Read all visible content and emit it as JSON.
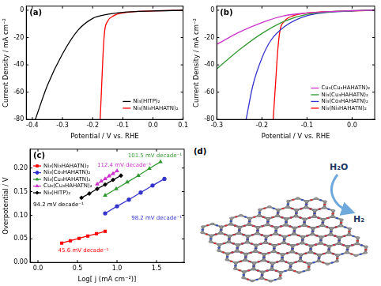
{
  "chart_data": [
    {
      "type": "line",
      "title": "(a)",
      "x_label": "Potential / V vs. RHE",
      "y_label": "Current Density / mA cm⁻²",
      "xlim": [
        -0.42,
        0.1
      ],
      "xticks": [
        -0.4,
        -0.3,
        -0.2,
        -0.1,
        {
          "value": 0,
          "label": "0.0"
        },
        0.1
      ],
      "ylim": [
        -80,
        3
      ],
      "yticks": [
        -80,
        -60,
        -40,
        -20,
        0
      ],
      "grid": false,
      "legend": "lower right",
      "series": [
        {
          "name": "Ni₃(HITP)₂",
          "color": "#000000",
          "x": [
            -0.39,
            -0.35,
            -0.3,
            -0.25,
            -0.2,
            -0.15,
            -0.1,
            0,
            0.1
          ],
          "values": [
            -80,
            -55,
            -32,
            -15,
            -6,
            -3,
            -1.5,
            -0.5,
            0
          ]
        },
        {
          "name": "Ni₃(Ni₃HAHATN)₂",
          "color": "#ff0000",
          "x": [
            -0.175,
            -0.17,
            -0.165,
            -0.16,
            -0.15,
            -0.13,
            -0.1,
            0,
            0.1
          ],
          "values": [
            -80,
            -55,
            -30,
            -15,
            -8,
            -4,
            -2,
            -0.5,
            0
          ]
        }
      ]
    },
    {
      "type": "line",
      "title": "(b)",
      "x_label": "Potential / V vs. RHE",
      "y_label": "Current Density / mA cm⁻²",
      "xlim": [
        -0.3,
        0.05
      ],
      "xticks": [
        -0.3,
        -0.2,
        -0.1,
        {
          "value": 0,
          "label": "0.0"
        }
      ],
      "ylim": [
        -80,
        3
      ],
      "yticks": [
        -80,
        -60,
        -40,
        -20,
        0
      ],
      "grid": false,
      "legend": "lower right",
      "series": [
        {
          "name": "Cu₃(Cu₃HAHATN)₂",
          "color": "#cc33cc",
          "x": [
            -0.3,
            -0.25,
            -0.2,
            -0.15,
            -0.1,
            0,
            0.05
          ],
          "values": [
            -25,
            -16,
            -9,
            -4,
            -2,
            -0.3,
            0
          ]
        },
        {
          "name": "Ni₃(Cu₃HAHATN)₂",
          "color": "#339933",
          "x": [
            -0.3,
            -0.25,
            -0.2,
            -0.15,
            -0.1,
            0,
            0.05
          ],
          "values": [
            -43,
            -29,
            -17,
            -8,
            -3,
            -0.3,
            0
          ]
        },
        {
          "name": "Ni₃(Co₃HAHATN)₂",
          "color": "#3333cc",
          "x": [
            -0.235,
            -0.22,
            -0.2,
            -0.18,
            -0.15,
            -0.1,
            0,
            0.05
          ],
          "values": [
            -80,
            -55,
            -35,
            -22,
            -12,
            -4,
            -0.5,
            0
          ]
        },
        {
          "name": "Ni₃(Ni₃HAHATN)₂",
          "color": "#ff0000",
          "x": [
            -0.175,
            -0.17,
            -0.165,
            -0.16,
            -0.15,
            -0.13,
            -0.1,
            0,
            0.05
          ],
          "values": [
            -80,
            -55,
            -30,
            -15,
            -8,
            -4,
            -2,
            -0.5,
            0
          ]
        }
      ]
    },
    {
      "type": "line",
      "title": "(c)",
      "x_label": "Log[ j (mA cm⁻²)]",
      "y_label": "Overpotential / V",
      "xlim": [
        -0.1,
        1.85
      ],
      "xticks": [
        {
          "value": 0,
          "label": "0.0"
        },
        0.5,
        {
          "value": 1,
          "label": "1.0"
        },
        1.5
      ],
      "ylim": [
        0,
        0.24
      ],
      "yticks": [
        {
          "value": 0,
          "label": "0.00"
        },
        0.05,
        {
          "value": 0.1,
          "label": "0.10"
        },
        0.15,
        {
          "value": 0.2,
          "label": "0.20"
        }
      ],
      "grid": false,
      "legend": "upper left",
      "series": [
        {
          "name": "Ni₃(Ni₃HAHATN)₂",
          "color": "#ff0000",
          "marker": "square",
          "annotation": "45.6 mV decade⁻¹",
          "x": [
            0.3,
            0.41,
            0.52,
            0.63,
            0.74,
            0.85
          ],
          "values": [
            0.041,
            0.046,
            0.051,
            0.056,
            0.061,
            0.066
          ]
        },
        {
          "name": "Ni₃(Co₃HAHATN)₂",
          "color": "#3333cc",
          "marker": "circle",
          "annotation": "98.2 mV decade⁻¹",
          "x": [
            0.85,
            1.0,
            1.15,
            1.3,
            1.45,
            1.6
          ],
          "values": [
            0.104,
            0.119,
            0.133,
            0.148,
            0.163,
            0.177
          ]
        },
        {
          "name": "Ni₃(Cu₃HAHATN)₂",
          "color": "#339933",
          "marker": "triangle",
          "annotation": "101.5 mV decade⁻¹",
          "x": [
            0.85,
            0.99,
            1.13,
            1.27,
            1.41,
            1.55
          ],
          "values": [
            0.142,
            0.156,
            0.17,
            0.184,
            0.199,
            0.213
          ]
        },
        {
          "name": "Cu₃(Cu₃HAHATN)₂",
          "color": "#cc33cc",
          "marker": "triangle",
          "annotation": "112.4 mV decade⁻¹",
          "x": [
            0.75,
            0.8,
            0.85,
            0.9,
            0.95,
            1.0
          ],
          "values": [
            0.166,
            0.172,
            0.177,
            0.183,
            0.188,
            0.194
          ]
        },
        {
          "name": "Ni₃(HITP)₂",
          "color": "#000000",
          "marker": "diamond",
          "annotation": "94.2 mV decade⁻¹",
          "x": [
            0.55,
            0.65,
            0.75,
            0.85,
            0.95,
            1.05
          ],
          "values": [
            0.137,
            0.146,
            0.156,
            0.165,
            0.175,
            0.184
          ]
        }
      ]
    }
  ],
  "illustration": {
    "title": "(d)",
    "reactant": "H₂O",
    "product": "H₂"
  }
}
